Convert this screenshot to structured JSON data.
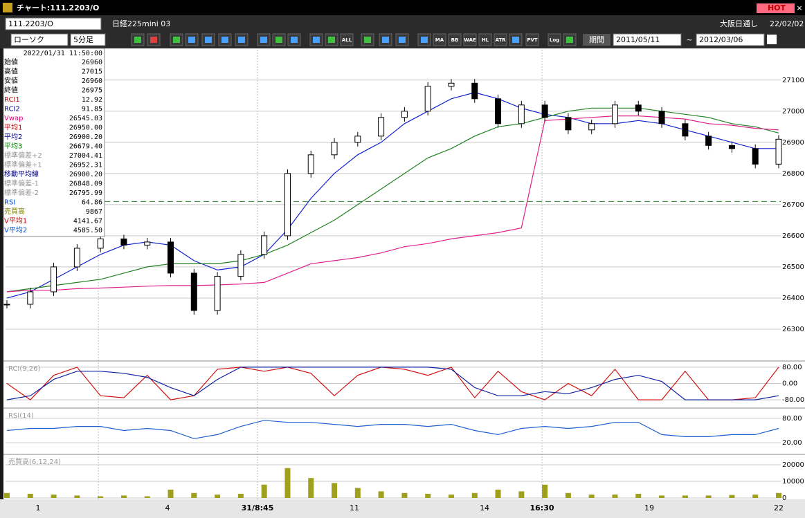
{
  "window": {
    "title": "チャート:111.2203/O",
    "hot": "HOT"
  },
  "symbol_bar": {
    "code": "111.2203/O",
    "name": "日経225mini 03",
    "session": "大阪日通し",
    "date": "22/02/02"
  },
  "toolbar": {
    "chart_type": "ローソク",
    "interval": "5分足",
    "buttons": [
      "ALL",
      "MA",
      "BB",
      "WAE",
      "HL",
      "ATR",
      "PVT",
      "Log"
    ],
    "period": "期間",
    "from": "2011/05/11",
    "tilde": "~",
    "to": "2012/03/06"
  },
  "info_panel": {
    "datetime": "2022/01/31  11:50:00",
    "rows": [
      [
        "始値",
        "26960"
      ],
      [
        "高値",
        "27015"
      ],
      [
        "安値",
        "26960"
      ],
      [
        "終値",
        "26975"
      ],
      [
        "RCI1",
        "12.92"
      ],
      [
        "RCI2",
        "91.85"
      ],
      [
        "Vwap",
        "26545.03"
      ],
      [
        "平均1",
        "26950.00"
      ],
      [
        "平均2",
        "26900.20"
      ],
      [
        "平均3",
        "26679.40"
      ],
      [
        "標準偏差+2",
        "27004.41"
      ],
      [
        "標準偏差+1",
        "26952.31"
      ],
      [
        "移動平均線",
        "26900.20"
      ],
      [
        "標準偏差-1",
        "26848.09"
      ],
      [
        "標準偏差-2",
        "26795.99"
      ],
      [
        "RSI",
        "64.86"
      ],
      [
        "売買高",
        "9867"
      ],
      [
        "V平均1",
        "4141.67"
      ],
      [
        "V平均2",
        "4585.50"
      ]
    ],
    "colors": [
      "#000",
      "#000",
      "#000",
      "#000",
      "#c00000",
      "#000080",
      "#e0007a",
      "#c00000",
      "#000080",
      "#008000",
      "#999",
      "#999",
      "#000080",
      "#999",
      "#999",
      "#0050d0",
      "#808000",
      "#c00000",
      "#0050d0"
    ]
  },
  "x_labels": [
    "1",
    "4",
    "31/8:45",
    "11",
    "14",
    "16:30",
    "19",
    "22"
  ],
  "chart_data": [
    {
      "type": "candlestick",
      "ylim": [
        26200,
        27195
      ],
      "yticks": [
        26300,
        26400,
        26500,
        26600,
        26700,
        26800,
        26900,
        27000,
        27100
      ],
      "grid": true,
      "reference_line": 26710,
      "values": [
        26380,
        26420,
        26500,
        26560,
        26590,
        26570,
        26580,
        26480,
        26360,
        26470,
        26540,
        26600,
        26800,
        26860,
        26900,
        26920,
        26980,
        27000,
        27080,
        27090,
        27040,
        26960,
        27020,
        26980,
        26940,
        26960,
        27020,
        27000,
        26960,
        26920,
        26890,
        26880,
        26830,
        26910
      ],
      "series": [
        {
          "color": "#1020d0",
          "values": [
            26400,
            26420,
            26460,
            26500,
            26540,
            26570,
            26580,
            26570,
            26520,
            26490,
            26500,
            26540,
            26620,
            26720,
            26800,
            26860,
            26900,
            26960,
            27000,
            27040,
            27060,
            27040,
            27010,
            26990,
            26980,
            26960,
            26960,
            26970,
            26960,
            26940,
            26920,
            26900,
            26880,
            26880
          ]
        },
        {
          "color": "#208020",
          "values": [
            26420,
            26430,
            26440,
            26450,
            26460,
            26480,
            26500,
            26510,
            26510,
            26510,
            26520,
            26540,
            26570,
            26610,
            26650,
            26700,
            26750,
            26800,
            26850,
            26880,
            26920,
            26950,
            26960,
            26980,
            27000,
            27010,
            27010,
            27010,
            27000,
            26990,
            26980,
            26960,
            26950,
            26930
          ]
        },
        {
          "color": "#e0208a",
          "values": [
            26420,
            26425,
            26425,
            26430,
            26432,
            26435,
            26438,
            26440,
            26440,
            26442,
            26445,
            26450,
            26480,
            26510,
            26520,
            26530,
            26545,
            26565,
            26575,
            26590,
            26600,
            26610,
            26625,
            26970,
            26975,
            26980,
            26985,
            26985,
            26980,
            26975,
            26960,
            26955,
            26945,
            26940
          ]
        }
      ]
    },
    {
      "type": "line",
      "title": "RCI(9,26)",
      "ylim": [
        -100,
        100
      ],
      "yticks": [
        {
          "value": 80,
          "label": "80.00"
        },
        {
          "value": 0,
          "label": "0.00"
        },
        {
          "value": -80,
          "label": "-80.00"
        }
      ],
      "grid": true,
      "series": [
        {
          "color": "#d01010",
          "values": [
            0,
            -80,
            40,
            80,
            -60,
            -70,
            40,
            -80,
            -60,
            70,
            80,
            60,
            80,
            50,
            -60,
            40,
            80,
            70,
            40,
            80,
            -70,
            60,
            -40,
            -80,
            0,
            -60,
            70,
            -80,
            -80,
            60,
            -80,
            -80,
            -70,
            80
          ]
        },
        {
          "color": "#1020a0",
          "values": [
            -80,
            -60,
            20,
            60,
            60,
            50,
            30,
            -20,
            -60,
            20,
            80,
            80,
            80,
            80,
            80,
            80,
            80,
            80,
            80,
            70,
            -20,
            -60,
            -60,
            -40,
            -50,
            -20,
            20,
            40,
            10,
            -80,
            -80,
            -80,
            -80,
            -60
          ]
        }
      ]
    },
    {
      "type": "line",
      "title": "RSI(14)",
      "ylim": [
        0,
        100
      ],
      "yticks": [
        {
          "value": 80,
          "label": "80.00"
        },
        {
          "value": 20,
          "label": "20.00"
        }
      ],
      "grid": true,
      "series": [
        {
          "color": "#2060d0",
          "values": [
            50,
            55,
            55,
            60,
            60,
            50,
            55,
            50,
            30,
            40,
            60,
            75,
            70,
            70,
            65,
            60,
            65,
            65,
            60,
            65,
            50,
            40,
            55,
            60,
            55,
            60,
            70,
            70,
            40,
            35,
            35,
            40,
            40,
            55
          ]
        }
      ]
    },
    {
      "type": "bar",
      "title": "売買高(6,12,24)",
      "ylim": [
        0,
        25000
      ],
      "yticks": [
        0,
        10000,
        20000
      ],
      "grid": true,
      "color": "#a0a020",
      "values": [
        3000,
        2500,
        2000,
        1500,
        1000,
        1500,
        1000,
        5000,
        3000,
        2000,
        2500,
        8000,
        18000,
        12000,
        9000,
        6000,
        4000,
        3000,
        2500,
        2000,
        3000,
        5000,
        4000,
        8000,
        3000,
        2000,
        2000,
        2500,
        1500,
        1500,
        1500,
        1800,
        2000,
        3000
      ]
    }
  ]
}
